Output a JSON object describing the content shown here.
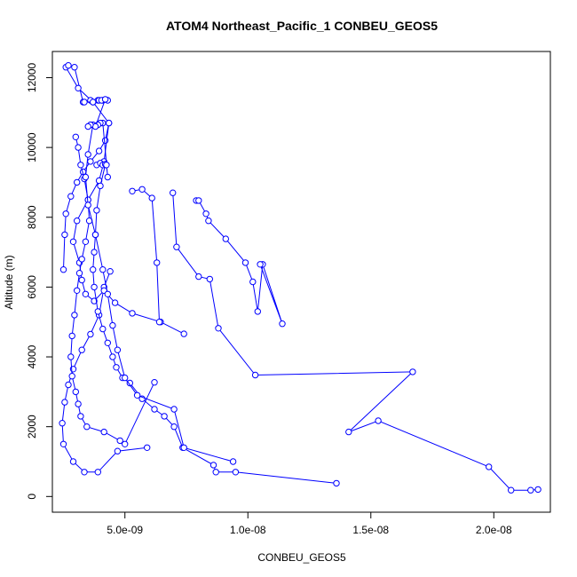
{
  "chart_data": {
    "type": "scatter",
    "title": "ATOM4 Northeast_Pacific_1 CONBEU_GEOS5",
    "xlabel": "CONBEU_GEOS5",
    "ylabel": "Altitude (m)",
    "xlim": [
      2.05e-09,
      2.23e-08
    ],
    "ylim": [
      -450,
      12750
    ],
    "x_ticks": [
      {
        "value": 5e-09,
        "label": "5.0e-09"
      },
      {
        "value": 1e-08,
        "label": "1.0e-08"
      },
      {
        "value": 1.5e-08,
        "label": "1.5e-08"
      },
      {
        "value": 2e-08,
        "label": "2.0e-08"
      }
    ],
    "y_ticks": [
      {
        "value": 0,
        "label": "0"
      },
      {
        "value": 2000,
        "label": "2000"
      },
      {
        "value": 4000,
        "label": "4000"
      },
      {
        "value": 6000,
        "label": "6000"
      },
      {
        "value": 8000,
        "label": "8000"
      },
      {
        "value": 10000,
        "label": "10000"
      },
      {
        "value": 12000,
        "label": "12000"
      }
    ],
    "grid": false,
    "color": "#0000ff",
    "series": [
      {
        "x": [
          2.5e-09,
          2.55e-09,
          2.6e-09,
          2.8e-09,
          3.05e-09,
          3.3e-09,
          3.6e-09,
          3.95e-09,
          4.2e-09,
          4.35e-09,
          3.7e-09,
          3.1e-09,
          2.6e-09,
          2.7e-09,
          2.95e-09,
          3.3e-09,
          3.6e-09,
          3.9e-09,
          4.1e-09
        ],
        "y": [
          6500,
          7500,
          8100,
          8600,
          9000,
          9300,
          9600,
          9900,
          10200,
          10700,
          11300,
          11700,
          12300,
          12350,
          12300,
          11300,
          11350,
          11350,
          11350
        ]
      },
      {
        "x": [
          4.4e-09,
          4.15e-09,
          3.95e-09,
          3.6e-09,
          3.25e-09,
          2.9e-09,
          2.7e-09,
          2.55e-09,
          2.45e-09,
          2.5e-09,
          2.9e-09,
          3.35e-09,
          3.9e-09,
          4.7e-09,
          5.9e-09
        ],
        "y": [
          6450,
          6000,
          5200,
          4650,
          4200,
          3650,
          3200,
          2700,
          2100,
          1500,
          1000,
          700,
          700,
          1300,
          1400
        ]
      },
      {
        "x": [
          4.35e-09,
          4.15e-09,
          3.95e-09,
          3.5e-09,
          3.05e-09,
          2.9e-09,
          3.15e-09,
          3.25e-09,
          3.4e-09,
          3.75e-09,
          4.15e-09,
          4.6e-09,
          5.3e-09,
          6.45e-09,
          7.4e-09
        ],
        "y": [
          10700,
          9600,
          9050,
          8500,
          7900,
          7300,
          6700,
          6200,
          5800,
          5600,
          5900,
          5550,
          5250,
          5000,
          4660
        ]
      },
      {
        "x": [
          4.2e-09,
          4e-09,
          3.85e-09,
          3.8e-09,
          3.75e-09,
          3.7e-09,
          3.75e-09,
          3.9e-09,
          4.1e-09,
          4.3e-09,
          4.5e-09,
          4.65e-09,
          4.9e-09,
          5.2e-09,
          5.7e-09,
          6.2e-09,
          6.6e-09,
          7e-09,
          7.35e-09,
          8.6e-09,
          8.7e-09,
          9.5e-09,
          1.36e-08
        ],
        "y": [
          9500,
          8900,
          8200,
          7500,
          7000,
          6500,
          6000,
          5300,
          4800,
          4400,
          4000,
          3700,
          3400,
          3250,
          2800,
          2500,
          2300,
          2000,
          1400,
          900,
          700,
          700,
          380
        ]
      },
      {
        "x": [
          3e-09,
          3.1e-09,
          3.2e-09,
          3.35e-09,
          3.5e-09,
          3.55e-09,
          3.4e-09,
          3.25e-09,
          3.15e-09,
          3.05e-09,
          2.95e-09,
          2.85e-09,
          2.8e-09,
          2.85e-09,
          3e-09,
          3.1e-09,
          3.2e-09,
          3.45e-09,
          4.15e-09,
          4.8e-09,
          5e-09,
          6.2e-09
        ],
        "y": [
          10300,
          10000,
          9500,
          9100,
          8500,
          7900,
          7300,
          6800,
          6400,
          5900,
          5200,
          4600,
          4000,
          3450,
          3000,
          2650,
          2300,
          2000,
          1850,
          1600,
          1500,
          3270
        ]
      },
      {
        "x": [
          3.7e-09,
          3.5e-09,
          3.4e-09,
          3.5e-09,
          3.8e-09,
          4.1e-09,
          4.3e-09,
          4.5e-09,
          4.7e-09,
          5e-09,
          5.5e-09,
          7e-09,
          7.4e-09,
          9.4e-09
        ],
        "y": [
          10650,
          9800,
          9150,
          8350,
          7500,
          6500,
          5800,
          4900,
          4200,
          3400,
          2900,
          2500,
          1400,
          1000
        ]
      },
      {
        "x": [
          5.3e-09,
          5.7e-09,
          6.1e-09,
          6.3e-09,
          6.4e-09
        ],
        "y": [
          8750,
          8800,
          8550,
          6700,
          5000
        ]
      },
      {
        "x": [
          6.95e-09,
          7.1e-09,
          8e-09,
          8.45e-09,
          8.8e-09,
          1.03e-08,
          1.67e-08,
          1.41e-08,
          1.53e-08,
          1.98e-08,
          2.07e-08,
          2.15e-08,
          2.18e-08
        ],
        "y": [
          8700,
          7150,
          6300,
          6230,
          4820,
          3480,
          3570,
          1850,
          2170,
          850,
          180,
          180,
          200
        ]
      },
      {
        "x": [
          7.9e-09,
          8e-09,
          8.3e-09,
          8.4e-09,
          9.1e-09,
          9.9e-09,
          1.02e-08,
          1.04e-08,
          1.06e-08,
          1.14e-08,
          1.05e-08
        ],
        "y": [
          8480,
          8480,
          8100,
          7900,
          7380,
          6700,
          6150,
          5300,
          6650,
          4950,
          6650
        ]
      },
      {
        "x": [
          3.85e-09,
          4e-09,
          4.1e-09,
          4.2e-09,
          4.25e-09,
          4.3e-09,
          4.1e-09,
          4e-09,
          3.9e-09
        ],
        "y": [
          9500,
          9550,
          9500,
          9520,
          9500,
          9150,
          10700,
          10700,
          10650
        ]
      },
      {
        "x": [
          3.35e-09,
          3.7e-09,
          3.95e-09,
          4.05e-09,
          4.3e-09,
          4.2e-09,
          3.8e-09,
          3.6e-09,
          3.5e-09
        ],
        "y": [
          11300,
          11300,
          11350,
          11350,
          11350,
          11380,
          10600,
          10650,
          10600
        ]
      }
    ]
  }
}
